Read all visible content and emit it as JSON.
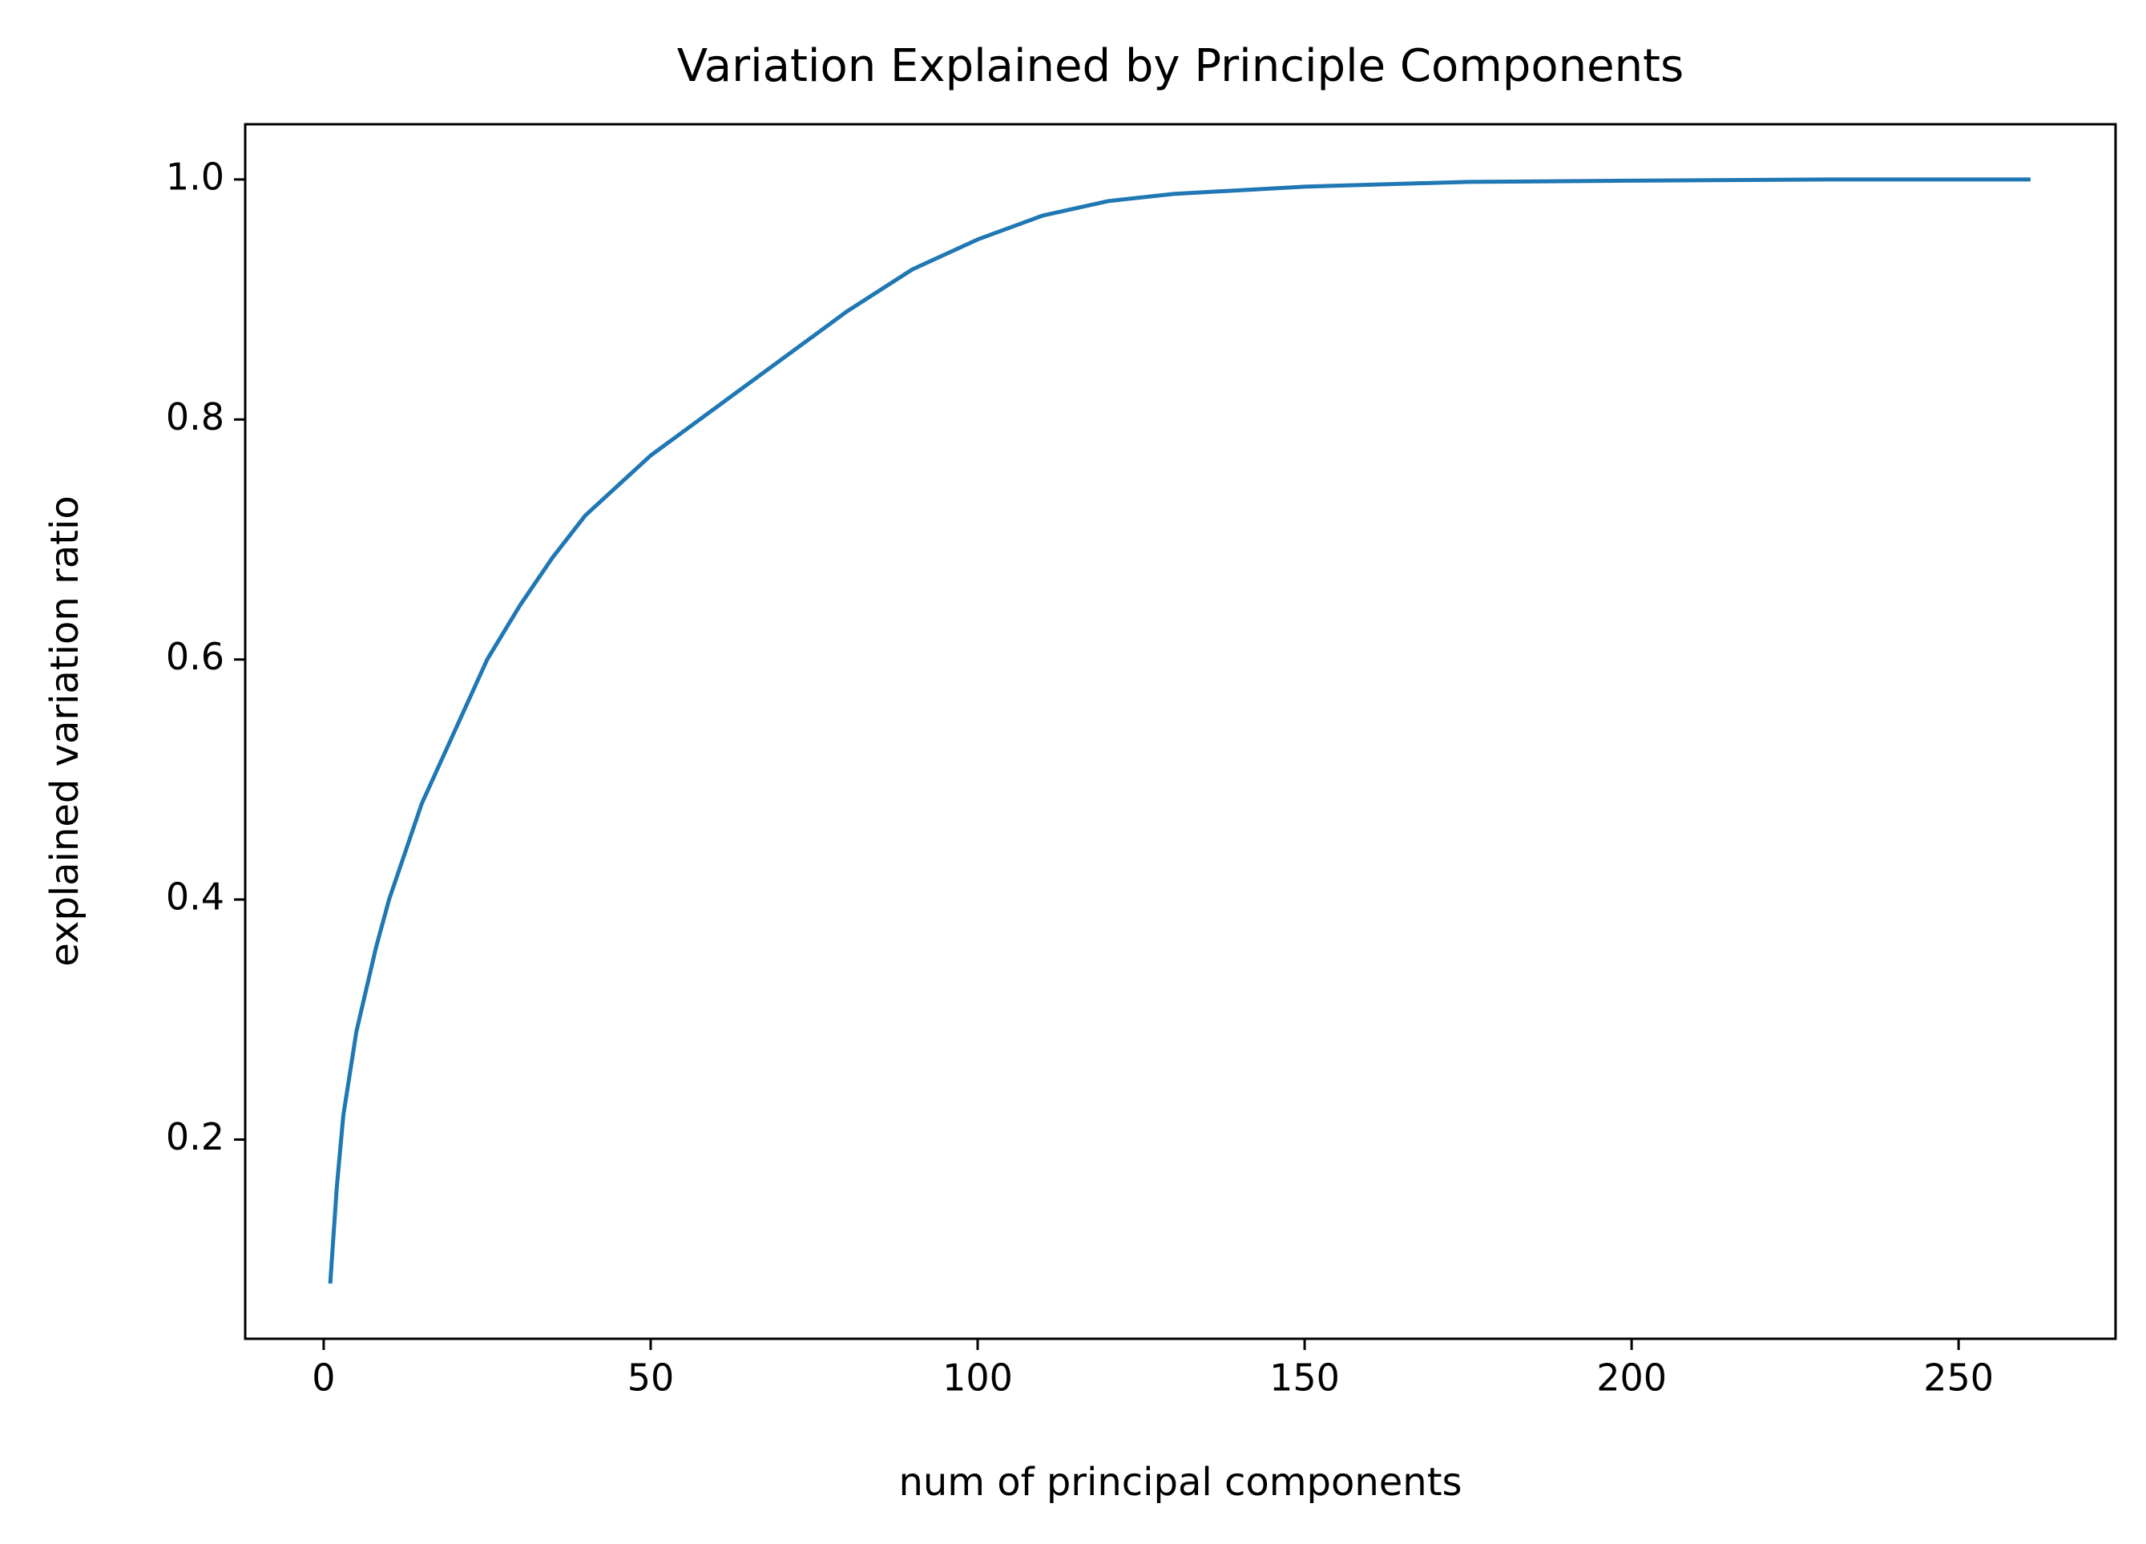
{
  "chart_data": {
    "type": "line",
    "title": "Variation Explained by Principle Components",
    "xlabel": "num of principal components",
    "ylabel": "explained variation ratio",
    "x": [
      1,
      2,
      3,
      5,
      8,
      10,
      15,
      20,
      25,
      30,
      35,
      40,
      45,
      50,
      55,
      60,
      70,
      80,
      90,
      100,
      110,
      120,
      130,
      150,
      175,
      200,
      230,
      261
    ],
    "series": [
      {
        "name": "explained variation ratio",
        "color": "#1f77b4",
        "values": [
          0.08,
          0.16,
          0.22,
          0.29,
          0.36,
          0.4,
          0.48,
          0.54,
          0.6,
          0.645,
          0.685,
          0.72,
          0.745,
          0.77,
          0.79,
          0.81,
          0.85,
          0.89,
          0.925,
          0.95,
          0.97,
          0.982,
          0.988,
          0.994,
          0.998,
          0.999,
          1.0,
          1.0
        ]
      }
    ],
    "xlim": [
      -12,
      274
    ],
    "ylim": [
      0.034,
      1.046
    ],
    "xticks": [
      0,
      50,
      100,
      150,
      200,
      250
    ],
    "yticks": [
      0.2,
      0.4,
      0.6,
      0.8,
      {
        "value": 1,
        "label": "1.0"
      }
    ],
    "grid": false
  }
}
